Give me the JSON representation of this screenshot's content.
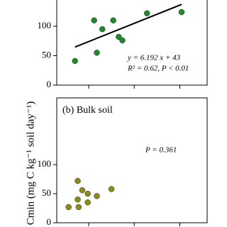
{
  "y_label": "Cmin (mg C kg⁻¹ soil day⁻¹)",
  "chart_data": [
    {
      "type": "scatter",
      "color": "#1f8a2a",
      "x": [
        3.5,
        5.9,
        5.6,
        6.5,
        7.7,
        8.3,
        8.7,
        11.4,
        15.2
      ],
      "values": [
        41,
        55,
        110,
        95,
        110,
        82,
        76,
        122,
        124
      ],
      "fit": {
        "slope": 6.192,
        "intercept": 43,
        "x_range": [
          3.5,
          15.2
        ],
        "color": "#000000"
      },
      "annotations": [
        "y = 6.192 x + 43",
        "R² = 0.62, P < 0.01"
      ],
      "xlim": [
        1.5,
        18
      ],
      "xticks": [
        5,
        10,
        15
      ],
      "ylim": [
        0,
        147
      ],
      "yticks": [
        0,
        50,
        100
      ]
    },
    {
      "type": "scatter",
      "color": "#8a8a1a",
      "title": "(b) Bulk soil",
      "x": [
        3.8,
        4.3,
        4.9,
        3.8,
        4.9,
        2.8,
        3.9,
        5.9,
        7.5
      ],
      "values": [
        72,
        56,
        50,
        40,
        35,
        27,
        27,
        46,
        58
      ],
      "annotations": [
        "P = 0.361"
      ],
      "xlim": [
        1.5,
        18
      ],
      "xticks": [
        5,
        10,
        15
      ],
      "ylim": [
        0,
        215
      ],
      "yticks": [
        0,
        50,
        100
      ]
    }
  ]
}
